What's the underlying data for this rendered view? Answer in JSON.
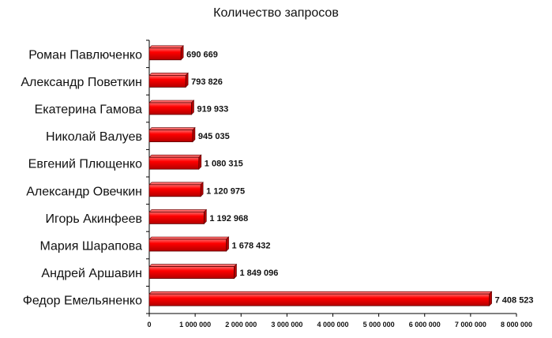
{
  "chart_data": {
    "type": "bar",
    "orientation": "horizontal",
    "title": "Количество запросов",
    "xlabel": "",
    "ylabel": "",
    "categories": [
      "Роман Павлюченко",
      "Александр Поветкин",
      "Екатерина Гамова",
      "Николай Валуев",
      "Евгений Плющенко",
      "Александр Овечкин",
      "Игорь Акинфеев",
      "Мария Шарапова",
      "Андрей Аршавин",
      "Федор Емельяненко"
    ],
    "values": [
      690669,
      793826,
      919933,
      945035,
      1080315,
      1120975,
      1192968,
      1678432,
      1849096,
      7408523
    ],
    "value_labels": [
      "690 669",
      "793 826",
      "919 933",
      "945 035",
      "1 080 315",
      "1 120 975",
      "1 192 968",
      "1 678 432",
      "1 849 096",
      "7 408 523"
    ],
    "xlim": [
      0,
      8000000
    ],
    "x_ticks": [
      0,
      1000000,
      2000000,
      3000000,
      4000000,
      5000000,
      6000000,
      7000000,
      8000000
    ],
    "x_tick_labels": [
      "0",
      "1 000 000",
      "2 000 000",
      "3 000 000",
      "4 000 000",
      "5 000 000",
      "6 000 000",
      "7 000 000",
      "8 000 000"
    ],
    "grid": false,
    "legend": "none",
    "colors": {
      "bar": "#ff0000",
      "bar_dark": "#b30000",
      "bar_highlight": "#ff6a6a",
      "bar_outline": "#5a0000",
      "axis": "#000000",
      "text": "#111111"
    }
  }
}
